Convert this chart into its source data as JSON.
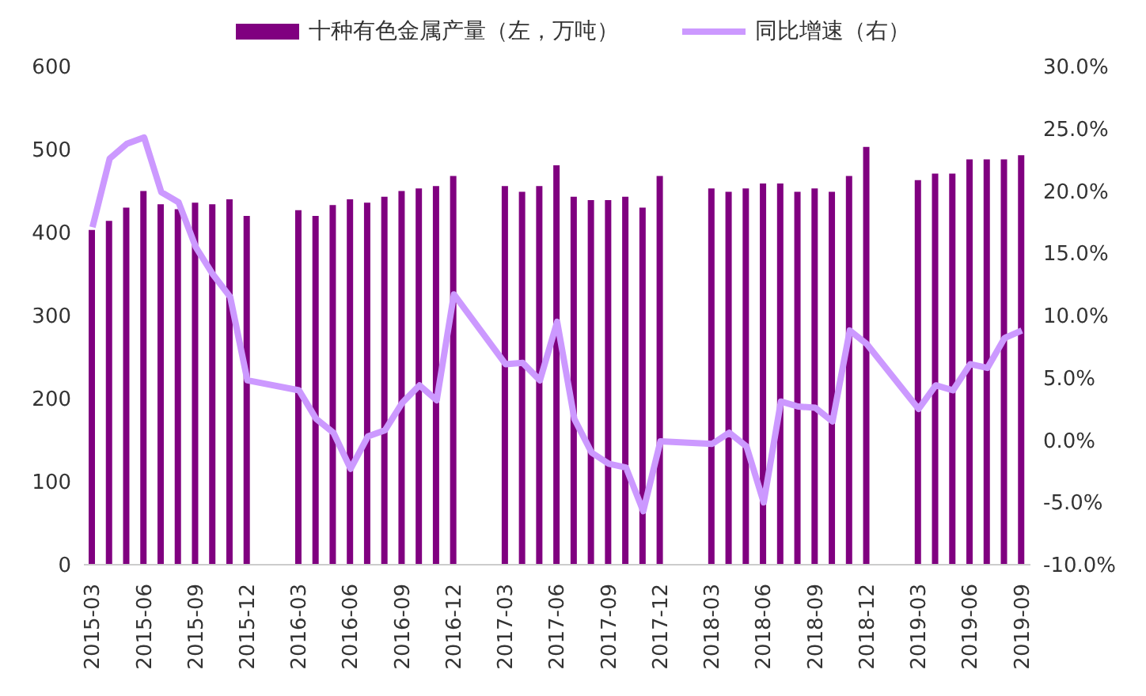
{
  "chart_data": {
    "type": "bar",
    "legend": "top",
    "grid": false,
    "categories": [
      "2015-03",
      null,
      null,
      "2015-06",
      null,
      null,
      "2015-09",
      null,
      null,
      "2015-12",
      null,
      null,
      "2016-03",
      null,
      null,
      "2016-06",
      null,
      null,
      "2016-09",
      null,
      null,
      "2016-12",
      null,
      null,
      "2017-03",
      null,
      null,
      "2017-06",
      null,
      null,
      "2017-09",
      null,
      null,
      "2017-12",
      null,
      null,
      "2018-03",
      null,
      null,
      "2018-06",
      null,
      null,
      "2018-09",
      null,
      null,
      "2018-12",
      null,
      null,
      "2019-03",
      null,
      null,
      "2019-06",
      null,
      null,
      "2019-09"
    ],
    "series": [
      {
        "name": "十种有色金属产量（左，万吨）",
        "color": "#800080",
        "values": [
          403,
          414,
          430,
          450,
          434,
          428,
          436,
          434,
          440,
          420,
          null,
          null,
          427,
          420,
          433,
          440,
          436,
          443,
          450,
          453,
          456,
          468,
          null,
          null,
          456,
          449,
          456,
          481,
          443,
          439,
          439,
          443,
          430,
          468,
          null,
          null,
          453,
          449,
          453,
          459,
          459,
          449,
          453,
          449,
          468,
          503,
          null,
          null,
          463,
          471,
          471,
          488,
          488,
          488,
          493
        ]
      },
      {
        "name": "同比增速（右）",
        "type": "line",
        "axis": "y2",
        "color": "#cc99ff",
        "values": [
          17.1,
          22.6,
          23.8,
          24.3,
          19.9,
          19.1,
          15.5,
          13.3,
          11.5,
          4.8,
          null,
          null,
          4.0,
          1.7,
          0.6,
          -2.3,
          0.3,
          0.8,
          3.0,
          4.4,
          3.2,
          11.7,
          null,
          null,
          6.1,
          6.2,
          4.8,
          9.5,
          1.7,
          -1.0,
          -1.9,
          -2.2,
          -5.7,
          -0.1,
          null,
          null,
          -0.3,
          0.6,
          -0.5,
          -5.0,
          3.1,
          2.7,
          2.6,
          1.5,
          8.8,
          7.7,
          null,
          null,
          2.5,
          4.4,
          4.0,
          6.1,
          5.8,
          8.2,
          8.8
        ]
      }
    ],
    "ylim": [
      0,
      600
    ],
    "yticks": [
      0,
      100,
      200,
      300,
      400,
      500,
      600
    ],
    "y2lim": [
      -10,
      30
    ],
    "y2ticks": [
      {
        "value": -10,
        "label": "-10.0%"
      },
      {
        "value": -5,
        "label": "-5.0%"
      },
      {
        "value": 0,
        "label": "0.0%"
      },
      {
        "value": 5,
        "label": "5.0%"
      },
      {
        "value": 10,
        "label": "10.0%"
      },
      {
        "value": 15,
        "label": "15.0%"
      },
      {
        "value": 20,
        "label": "20.0%"
      },
      {
        "value": 25,
        "label": "25.0%"
      },
      {
        "value": 30,
        "label": "30.0%"
      }
    ]
  }
}
